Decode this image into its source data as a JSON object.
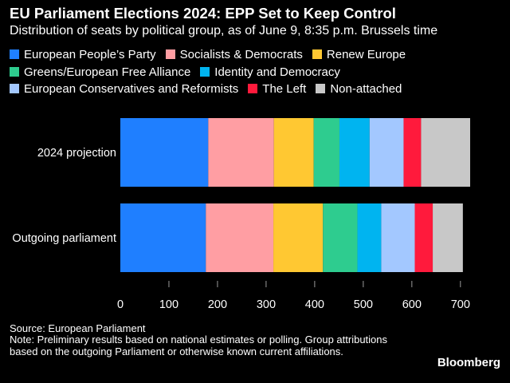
{
  "title": "EU Parliament Elections 2024: EPP Set to Keep Control",
  "subtitle": "Distribution of seats by political group, as of June 9, 8:35 p.m. Brussels time",
  "source": "Source: European Parliament",
  "note": "Note: Preliminary results based on national estimates or polling. Group attributions based on the outgoing Parliament or otherwise known current affiliations.",
  "brand": "Bloomberg",
  "chart_data": {
    "type": "bar",
    "orientation": "horizontal",
    "stacked": true,
    "categories": [
      "2024 projection",
      "Outgoing parliament"
    ],
    "series": [
      {
        "name": "European People’s Party",
        "color": "#1f7fff",
        "values": [
          181,
          176
        ]
      },
      {
        "name": "Socialists & Democrats",
        "color": "#ff9ea3",
        "values": [
          135,
          139
        ]
      },
      {
        "name": "Renew Europe",
        "color": "#ffc832",
        "values": [
          82,
          102
        ]
      },
      {
        "name": "Greens/European Free Alliance",
        "color": "#2ecc8f",
        "values": [
          53,
          71
        ]
      },
      {
        "name": "Identity and Democracy",
        "color": "#00b4f0",
        "values": [
          62,
          49
        ]
      },
      {
        "name": "European Conservatives and Reformists",
        "color": "#a3c8ff",
        "values": [
          70,
          69
        ]
      },
      {
        "name": "The Left",
        "color": "#ff1a3c",
        "values": [
          36,
          37
        ]
      },
      {
        "name": "Non-attached",
        "color": "#c8c8c8",
        "values": [
          101,
          62
        ]
      }
    ],
    "xticks": [
      0,
      100,
      200,
      300,
      400,
      500,
      600,
      700
    ],
    "xlim": [
      0,
      720
    ],
    "legend_position": "top"
  }
}
